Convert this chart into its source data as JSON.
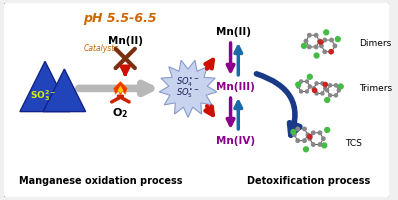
{
  "bg_color": "#f0f0f0",
  "border_color": "#999999",
  "title_ph": "pH 5.5-6.5",
  "title_ph_color": "#cc6600",
  "title_ph_fontsize": 9,
  "label_manganese": "Manganese oxidation process",
  "label_detox": "Detoxification process",
  "label_fontsize": 7,
  "mn2_label": "Mn(II)",
  "mn3_label": "Mn(III)",
  "mn4_label": "Mn(IV)",
  "mn_color": "#8B008B",
  "catalysts_label": "Catalysts",
  "o2_label": "O2",
  "dimers_label": "Dimers",
  "trimers_label": "Trimers",
  "tcs_label": "TCS",
  "blue_dark": "#1a3a88",
  "blue_arrow": "#1a6aaa",
  "red_color": "#cc1100",
  "brown_color": "#7a3010",
  "orange_color": "#cc6600",
  "gray_arrow": "#b0b0b0",
  "starburst_fill": "#c8d4ee",
  "starburst_edge": "#8899cc",
  "triangle_fill": "#2244bb",
  "triangle_edge": "#112288"
}
